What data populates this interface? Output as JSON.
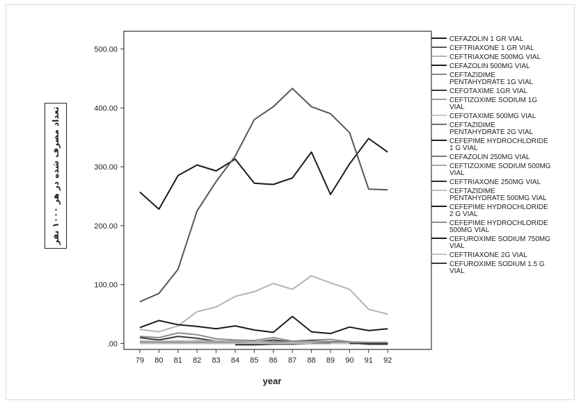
{
  "chart_data": {
    "type": "line",
    "title": "",
    "xlabel": "year",
    "ylabel": "تعداد مصرف شده در هر ۱۰۰۰ نفر",
    "x": [
      "79",
      "80",
      "81",
      "82",
      "83",
      "84",
      "85",
      "86",
      "87",
      "88",
      "89",
      "90",
      "91",
      "92"
    ],
    "ylim": [
      -10,
      530
    ],
    "y_ticks": [
      ".00",
      "100.00",
      "200.00",
      "300.00",
      "400.00",
      "500.00"
    ],
    "grid": false,
    "legend_position": "right",
    "series": [
      {
        "name": "CEFAZOLIN 1 GR VIAL",
        "color": "#1a1a1a",
        "values": [
          257,
          228,
          285,
          303,
          293,
          313,
          272,
          270,
          281,
          325,
          253,
          305,
          348,
          325
        ]
      },
      {
        "name": "CEFTRIAXONE 1 GR VIAL",
        "color": "#555555",
        "values": [
          71,
          85,
          126,
          225,
          275,
          318,
          380,
          402,
          433,
          402,
          390,
          358,
          262,
          261
        ]
      },
      {
        "name": "CEFTRIAXONE 500MG VIAL",
        "color": "#b4b4b4",
        "values": [
          24,
          20,
          30,
          54,
          62,
          80,
          88,
          102,
          92,
          115,
          103,
          92,
          58,
          50
        ]
      },
      {
        "name": "CEFAZOLIN 500MG VIAL",
        "color": "#1a1a1a",
        "values": [
          27,
          39,
          32,
          29,
          25,
          30,
          23,
          19,
          46,
          20,
          17,
          28,
          22,
          25
        ]
      },
      {
        "name": "CEFTAZIDIME PENTAHYDRATE 1G VIAL",
        "color": "#8a8a8a",
        "values": [
          12,
          10,
          18,
          15,
          8,
          6,
          5,
          10,
          4,
          6,
          7,
          3,
          2,
          2
        ]
      },
      {
        "name": "CEFOTAXIME 1GR VIAL",
        "color": "#3a3a3a",
        "values": [
          10,
          6,
          12,
          9,
          4,
          3,
          2,
          6,
          2,
          4,
          3,
          2,
          1,
          1
        ]
      },
      {
        "name": "CEFTIZOXIME SODIUM 1G VIAL",
        "color": "#9e9e9e",
        "values": [
          3,
          3,
          4,
          5,
          4,
          4,
          3,
          3,
          2,
          3,
          3,
          2,
          2,
          2
        ]
      },
      {
        "name": "CEFOTAXIME 500MG VIAL",
        "color": "#c8c8c8",
        "values": [
          5,
          4,
          5,
          4,
          3,
          3,
          2,
          2,
          2,
          2,
          2,
          1,
          1,
          1
        ]
      },
      {
        "name": "CEFTAZIDIME PENTAHYDRATE 2G VIAL",
        "color": "#6e6e6e",
        "values": [
          null,
          null,
          null,
          null,
          null,
          -1,
          -1,
          2,
          1,
          1,
          3,
          1,
          0,
          0
        ]
      },
      {
        "name": "CEFEPIME HYDROCHLORIDE 1 G VIAL",
        "color": "#1a1a1a",
        "values": [
          null,
          null,
          null,
          null,
          null,
          -2,
          -2,
          -1,
          -1,
          0,
          1,
          1,
          -1,
          -1
        ]
      },
      {
        "name": "CEFAZOLIN 250MG VIAL",
        "color": "#7a7a7a",
        "values": [
          2,
          2,
          2,
          2,
          2,
          2,
          1,
          1,
          1,
          1,
          1,
          1,
          1,
          1
        ]
      },
      {
        "name": "CEFTIZOXIME SODIUM 500MG VIAL",
        "color": "#a8a8a8",
        "values": [
          1,
          1,
          1,
          1,
          1,
          1,
          1,
          1,
          1,
          1,
          1,
          1,
          1,
          1
        ]
      },
      {
        "name": "CEFTRIAXONE 250MG VIAL",
        "color": "#2a2a2a",
        "values": [
          0,
          0,
          0,
          0,
          0,
          0,
          0,
          0,
          0,
          0,
          0,
          0,
          0,
          0
        ]
      },
      {
        "name": "CEFTAZIDIME PENTAHYDRATE 500MG VIAL",
        "color": "#bdbdbd",
        "values": [
          0,
          0,
          0,
          0,
          0,
          0,
          0,
          0,
          0,
          0,
          0,
          0,
          0,
          0
        ]
      },
      {
        "name": "CEFEPIME HYDROCHLORIDE 2 G VIAL",
        "color": "#1a1a1a",
        "values": [
          null,
          null,
          null,
          null,
          null,
          null,
          null,
          null,
          null,
          0,
          0,
          0,
          0,
          0
        ]
      },
      {
        "name": "CEFEPIME HYDROCHLORIDE 500MG VIAL",
        "color": "#909090",
        "values": [
          null,
          null,
          null,
          null,
          null,
          null,
          null,
          null,
          null,
          0,
          0,
          0,
          0,
          0
        ]
      },
      {
        "name": "CEFUROXIME SODIUM 750MG VIAL",
        "color": "#1a1a1a",
        "values": [
          null,
          null,
          null,
          null,
          null,
          null,
          null,
          null,
          null,
          null,
          0,
          0,
          0,
          0
        ]
      },
      {
        "name": "CEFTRIAXONE 2G  VIAL",
        "color": "#c4c4c4",
        "values": [
          null,
          null,
          null,
          null,
          null,
          null,
          null,
          null,
          null,
          null,
          0,
          0,
          0,
          0
        ]
      },
      {
        "name": "CEFUROXIME SODIUM 1.5 G VIAL",
        "color": "#3a3a3a",
        "values": [
          null,
          null,
          null,
          null,
          null,
          null,
          null,
          null,
          null,
          null,
          null,
          0,
          0,
          0
        ]
      }
    ]
  }
}
